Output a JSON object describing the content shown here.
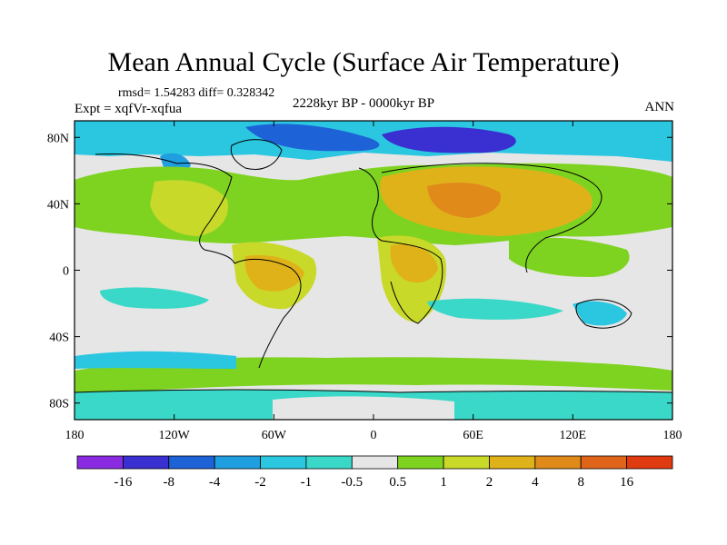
{
  "title": "Mean Annual Cycle (Surface Air Temperature)",
  "stats": "rmsd= 1.54283 diff= 0.328342",
  "experiment": "Expt = xqfVr-xqfua",
  "period": "2228kyr BP - 0000kyr BP",
  "season": "ANN",
  "map": {
    "lon_ticks": [
      "180",
      "120W",
      "60W",
      "0",
      "60E",
      "120E",
      "180"
    ],
    "lat_ticks": [
      "80N",
      "40N",
      "0",
      "40S",
      "80S"
    ],
    "lat_tick_values": [
      80,
      40,
      0,
      -40,
      -80
    ],
    "lon_tick_values": [
      -180,
      -120,
      -60,
      0,
      60,
      120,
      180
    ]
  },
  "colorbar": {
    "labels": [
      "-16",
      "-8",
      "-4",
      "-2",
      "-1",
      "-0.5",
      "0.5",
      "1",
      "2",
      "4",
      "8",
      "16"
    ],
    "colors": [
      "#8a2be2",
      "#3a2fd0",
      "#1e62d8",
      "#1f9ee0",
      "#2bc6e0",
      "#3ad8c8",
      "#e6e6e6",
      "#7ed321",
      "#c8d92a",
      "#e0b21a",
      "#e08a1a",
      "#e0641a",
      "#e03a10"
    ]
  },
  "colors": {
    "neutral": "#e6e6e6",
    "warm_light": "#7ed321",
    "warm_mid": "#c8d92a",
    "warm_high": "#e0b21a",
    "cool_light": "#3ad8c8",
    "cool_mid": "#1f9ee0",
    "cool_strong": "#3a2fd0"
  }
}
